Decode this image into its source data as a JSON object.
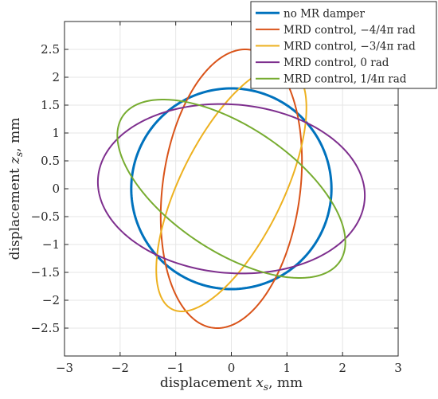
{
  "chart_data": {
    "type": "line",
    "title": "",
    "xlabel_main": "displacement ",
    "xlabel_var": "x",
    "xlabel_sub": "s",
    "xlabel_unit": ", mm",
    "ylabel_main": "displacement ",
    "ylabel_var": "z",
    "ylabel_sub": "s",
    "ylabel_unit": ", mm",
    "xlim": [
      -3,
      3
    ],
    "ylim": [
      -3,
      3
    ],
    "xticks": [
      -3,
      -2,
      -1,
      0,
      1,
      2,
      3
    ],
    "yticks": [
      -2.5,
      -2,
      -1.5,
      -1,
      -0.5,
      0,
      0.5,
      1,
      1.5,
      2,
      2.5
    ],
    "xtick_labels": [
      "−3",
      "−2",
      "−1",
      "0",
      "1",
      "2",
      "3"
    ],
    "ytick_labels": [
      "−2.5",
      "−2",
      "−1.5",
      "−1",
      "−0.5",
      "0",
      "0.5",
      "1",
      "1.5",
      "2",
      "2.5"
    ],
    "grid": true,
    "legend_position": "top-right",
    "series": [
      {
        "name": "no MR damper",
        "color": "#0072BD",
        "line_width": 3,
        "shape": "ellipse",
        "center": [
          0,
          0
        ],
        "x_amplitude": 1.8,
        "y_amplitude": 1.8,
        "phase": 0
      },
      {
        "name": "MRD control, −4/4π rad",
        "color": "#D95319",
        "line_width": 2,
        "shape": "ellipse",
        "center": [
          0,
          0
        ],
        "x_amplitude": 1.27,
        "y_amplitude": 2.5,
        "phase": -0.2
      },
      {
        "name": "MRD control, −3/4π rad",
        "color": "#EDB120",
        "line_width": 2,
        "shape": "ellipse",
        "center": [
          0,
          0
        ],
        "x_amplitude": 1.35,
        "y_amplitude": 2.2,
        "phase": -0.72
      },
      {
        "name": "MRD control, 0 rad",
        "color": "#7E2F8E",
        "line_width": 2,
        "shape": "ellipse",
        "center": [
          0,
          0
        ],
        "x_amplitude": 2.4,
        "y_amplitude": 1.52,
        "phase": 0.08
      },
      {
        "name": "MRD control, 1/4π rad",
        "color": "#77AC30",
        "line_width": 2,
        "shape": "ellipse",
        "center": [
          0,
          0
        ],
        "x_amplitude": 2.05,
        "y_amplitude": 1.6,
        "phase": 2.5
      }
    ]
  }
}
